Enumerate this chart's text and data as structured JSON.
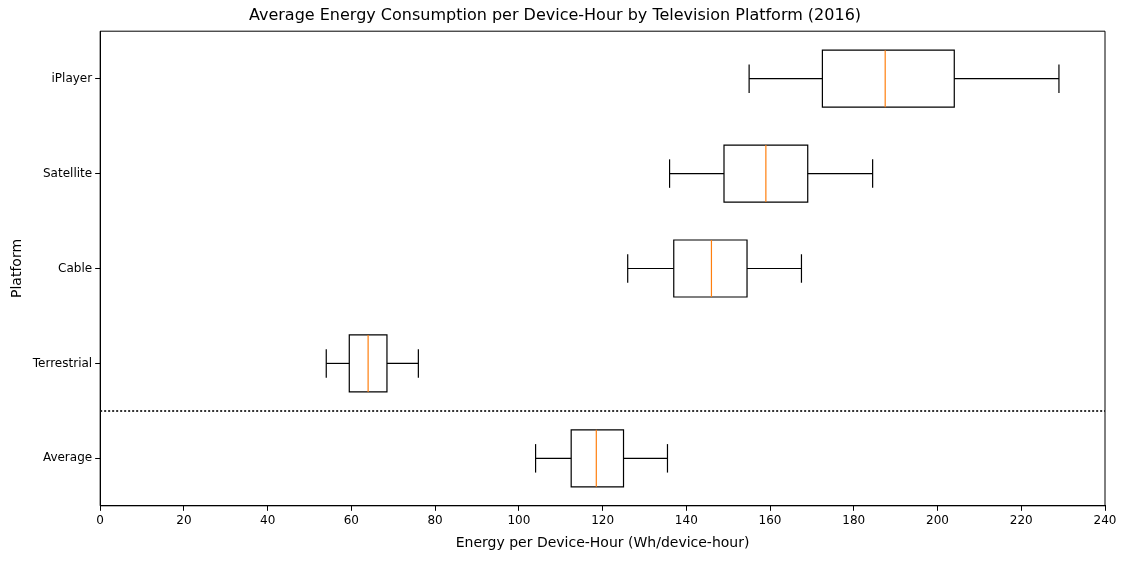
{
  "chart_data": {
    "type": "box",
    "orientation": "horizontal",
    "title": "Average Energy Consumption per Device-Hour by Television Platform (2016)",
    "xlabel": "Energy per Device-Hour (Wh/device-hour)",
    "ylabel": "Platform",
    "categories": [
      "iPlayer",
      "Satellite",
      "Cable",
      "Terrestrial",
      "Average"
    ],
    "series": [
      {
        "color": "#000000",
        "boxes": [
          {
            "low": 155,
            "q1": 172.5,
            "median": 187.5,
            "q3": 204,
            "high": 229
          },
          {
            "low": 136,
            "q1": 149,
            "median": 159,
            "q3": 169,
            "high": 184.5
          },
          {
            "low": 126,
            "q1": 137,
            "median": 146,
            "q3": 154.5,
            "high": 167.5
          },
          {
            "low": 54,
            "q1": 59.5,
            "median": 64,
            "q3": 68.5,
            "high": 76
          },
          {
            "low": 104,
            "q1": 112.5,
            "median": 118.5,
            "q3": 125,
            "high": 135.5
          }
        ]
      }
    ],
    "xlim": [
      0,
      240
    ],
    "xticks": [
      0,
      20,
      40,
      60,
      80,
      100,
      120,
      140,
      160,
      180,
      200,
      220,
      240
    ],
    "grid": false
  }
}
